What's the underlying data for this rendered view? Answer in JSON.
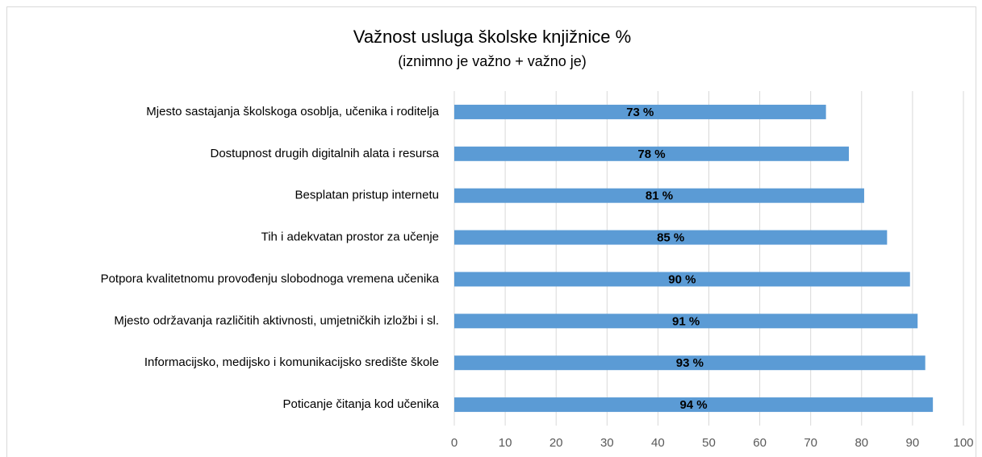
{
  "chart_data": {
    "type": "bar",
    "orientation": "horizontal",
    "title": "Važnost usluga školske knjižnice %",
    "subtitle": "(iznimno je važno + važno je)",
    "categories": [
      "Mjesto sastajanja školskoga osoblja, učenika i roditelja",
      "Dostupnost drugih digitalnih alata i resursa",
      "Besplatan pristup internetu",
      "Tih i adekvatan prostor za učenje",
      "Potpora kvalitetnomu provođenju slobodnoga vremena učenika",
      "Mjesto održavanja različitih aktivnosti, umjetničkih izložbi i sl.",
      "Informacijsko, medijsko i komunikacijsko središte škole",
      "Poticanje čitanja kod učenika"
    ],
    "values": [
      73,
      77.5,
      80.5,
      85,
      89.5,
      91,
      92.5,
      94
    ],
    "value_labels": [
      "73 %",
      "78 %",
      "81 %",
      "85 %",
      "90 %",
      "91 %",
      "93 %",
      "94 %"
    ],
    "color": "#5b9bd5",
    "xlim": [
      0,
      100
    ],
    "xticks": [
      0,
      10,
      20,
      30,
      40,
      50,
      60,
      70,
      80,
      90,
      100
    ],
    "grid": true
  }
}
